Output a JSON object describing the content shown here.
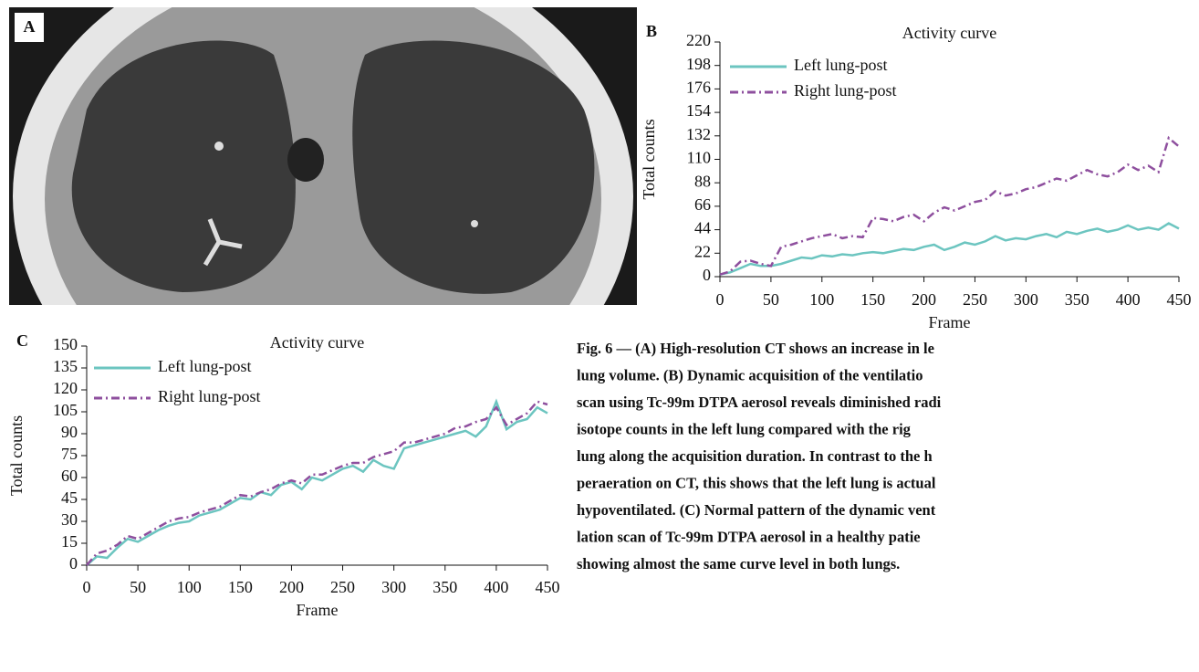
{
  "image": {
    "label": "A"
  },
  "chart_data": [
    {
      "type": "line",
      "panel_label": "B",
      "title": "Activity curve",
      "xlabel": "Frame",
      "ylabel": "Total counts",
      "x": [
        0,
        10,
        20,
        30,
        40,
        50,
        60,
        70,
        80,
        90,
        100,
        110,
        120,
        130,
        140,
        150,
        160,
        170,
        180,
        190,
        200,
        210,
        220,
        230,
        240,
        250,
        260,
        270,
        280,
        290,
        300,
        310,
        320,
        330,
        340,
        350,
        360,
        370,
        380,
        390,
        400,
        410,
        420,
        430,
        440,
        450
      ],
      "series": [
        {
          "name": "Left lung-post",
          "color": "#6cc5c0",
          "linestyle": "solid",
          "values": [
            2,
            4,
            8,
            12,
            10,
            10,
            12,
            15,
            18,
            17,
            20,
            19,
            21,
            20,
            22,
            23,
            22,
            24,
            26,
            25,
            28,
            30,
            25,
            28,
            32,
            30,
            33,
            38,
            34,
            36,
            35,
            38,
            40,
            37,
            42,
            40,
            43,
            45,
            42,
            44,
            48,
            44,
            46,
            44,
            50,
            45
          ]
        },
        {
          "name": "Right lung-post",
          "color": "#8e4f9e",
          "linestyle": "dashdot",
          "values": [
            2,
            5,
            14,
            15,
            12,
            10,
            28,
            30,
            33,
            36,
            38,
            40,
            36,
            38,
            37,
            55,
            54,
            52,
            56,
            58,
            52,
            60,
            65,
            62,
            66,
            70,
            72,
            80,
            76,
            78,
            82,
            84,
            88,
            92,
            90,
            95,
            100,
            96,
            94,
            98,
            105,
            100,
            104,
            98,
            130,
            122
          ]
        }
      ],
      "xlim": [
        0,
        450
      ],
      "xticks": [
        0,
        50,
        100,
        150,
        200,
        250,
        300,
        350,
        400,
        450
      ],
      "ylim": [
        0,
        220
      ],
      "yticks": [
        0,
        22,
        44,
        66,
        88,
        110,
        132,
        154,
        176,
        198,
        220
      ],
      "legend": "upper left"
    },
    {
      "type": "line",
      "panel_label": "C",
      "title": "Activity curve",
      "xlabel": "Frame",
      "ylabel": "Total counts",
      "x": [
        0,
        10,
        20,
        30,
        40,
        50,
        60,
        70,
        80,
        90,
        100,
        110,
        120,
        130,
        140,
        150,
        160,
        170,
        180,
        190,
        200,
        210,
        220,
        230,
        240,
        250,
        260,
        270,
        280,
        290,
        300,
        310,
        320,
        330,
        340,
        350,
        360,
        370,
        380,
        390,
        400,
        410,
        420,
        430,
        440,
        450
      ],
      "series": [
        {
          "name": "Left lung-post",
          "color": "#6cc5c0",
          "linestyle": "solid",
          "values": [
            0,
            6,
            5,
            12,
            18,
            16,
            20,
            24,
            27,
            29,
            30,
            34,
            36,
            38,
            42,
            46,
            45,
            50,
            48,
            55,
            57,
            52,
            60,
            58,
            62,
            66,
            68,
            64,
            72,
            68,
            66,
            80,
            82,
            84,
            86,
            88,
            90,
            92,
            88,
            95,
            112,
            93,
            98,
            100,
            108,
            104
          ]
        },
        {
          "name": "Right lung-post",
          "color": "#8e4f9e",
          "linestyle": "dashdot",
          "values": [
            0,
            8,
            10,
            14,
            20,
            18,
            22,
            26,
            30,
            32,
            33,
            36,
            38,
            40,
            44,
            48,
            47,
            50,
            52,
            56,
            58,
            56,
            62,
            62,
            65,
            68,
            70,
            70,
            74,
            76,
            78,
            84,
            84,
            86,
            88,
            90,
            94,
            95,
            98,
            100,
            108,
            96,
            100,
            104,
            112,
            110
          ]
        }
      ],
      "xlim": [
        0,
        450
      ],
      "xticks": [
        0,
        50,
        100,
        150,
        200,
        250,
        300,
        350,
        400,
        450
      ],
      "ylim": [
        0,
        150
      ],
      "yticks": [
        0,
        15,
        30,
        45,
        60,
        75,
        90,
        105,
        120,
        135,
        150
      ],
      "legend": "upper left"
    }
  ],
  "caption": {
    "lines": [
      "Fig. 6 — (A) High-resolution CT shows an increase in le",
      "lung volume. (B) Dynamic acquisition of the ventilatio",
      "scan using Tc-99m DTPA aerosol reveals diminished radi",
      "isotope counts in the left lung compared with the rig",
      "lung along the acquisition duration. In contrast to the h",
      "peraeration on CT, this shows that the left lung is actual",
      "hypoventilated. (C) Normal pattern of the dynamic vent",
      "lation scan of Tc-99m DTPA aerosol in a healthy patie",
      "showing almost the same curve level in both lungs."
    ]
  }
}
